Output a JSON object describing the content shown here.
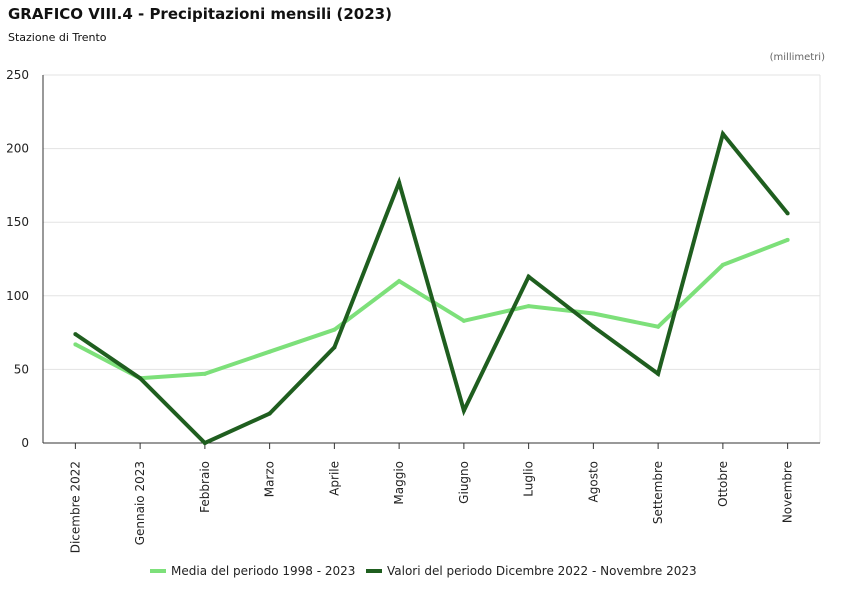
{
  "chart_data": {
    "type": "line",
    "title": "GRAFICO VIII.4 - Precipitazioni mensili (2023)",
    "subtitle": "Stazione di Trento",
    "unit_label": "(millimetri)",
    "xlabel": "",
    "ylabel": "",
    "ylim": [
      0,
      250
    ],
    "yticks": [
      0,
      50,
      100,
      150,
      200,
      250
    ],
    "grid": true,
    "legend_position": "bottom",
    "categories": [
      "Dicembre 2022",
      "Gennaio 2023",
      "Febbraio",
      "Marzo",
      "Aprile",
      "Maggio",
      "Giugno",
      "Luglio",
      "Agosto",
      "Settembre",
      "Ottobre",
      "Novembre"
    ],
    "series": [
      {
        "name": "Media del periodo 1998 - 2023",
        "color": "#7de07a",
        "values": [
          67,
          44,
          47,
          62,
          77,
          110,
          83,
          93,
          88,
          79,
          121,
          138
        ]
      },
      {
        "name": "Valori del periodo Dicembre 2022 - Novembre 2023",
        "color": "#1f5e1f",
        "values": [
          74,
          44,
          0,
          20,
          65,
          177,
          22,
          113,
          79,
          47,
          210,
          156
        ]
      }
    ]
  }
}
